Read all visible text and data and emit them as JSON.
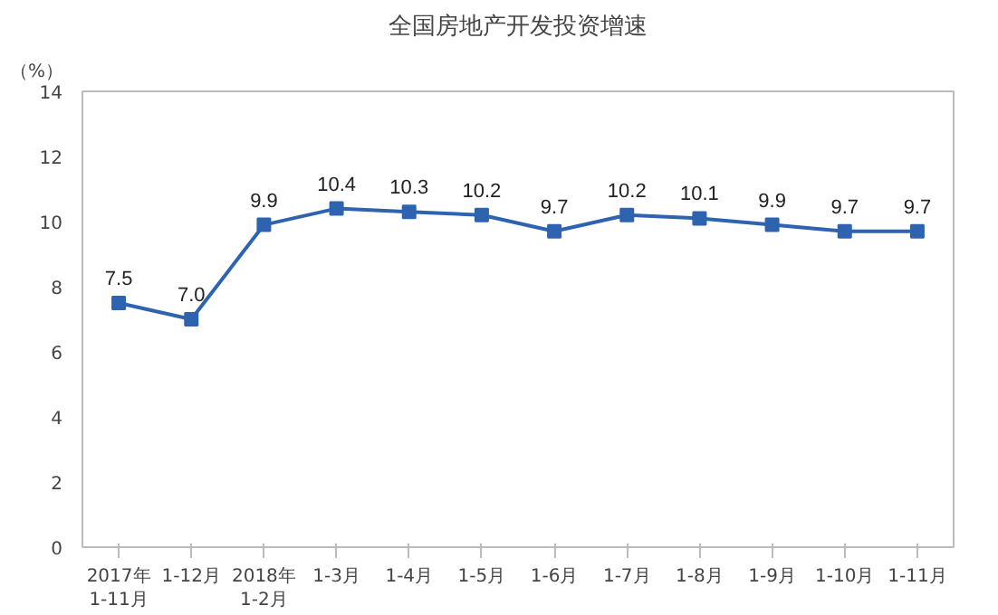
{
  "chart_data": {
    "type": "line",
    "title": "全国房地产开发投资增速",
    "ylabel": "（%）",
    "categories": [
      "2017年\n1-11月",
      "1-12月",
      "2018年\n1-2月",
      "1-3月",
      "1-4月",
      "1-5月",
      "1-6月",
      "1-7月",
      "1-8月",
      "1-9月",
      "1-10月",
      "1-11月"
    ],
    "series": [
      {
        "color": "#2e63b0",
        "values": [
          7.5,
          7.0,
          9.9,
          10.4,
          10.3,
          10.2,
          9.7,
          10.2,
          10.1,
          9.9,
          9.7,
          9.7
        ]
      }
    ],
    "value_labels": [
      "7.5",
      "7.0",
      "9.9",
      "10.4",
      "10.3",
      "10.2",
      "9.7",
      "10.2",
      "10.1",
      "9.9",
      "9.7",
      "9.7"
    ],
    "ylim": [
      0,
      14
    ],
    "yticks": [
      0,
      2,
      4,
      6,
      8,
      10,
      12,
      14
    ],
    "grid": false,
    "marker": "square",
    "line_style": "solid"
  }
}
